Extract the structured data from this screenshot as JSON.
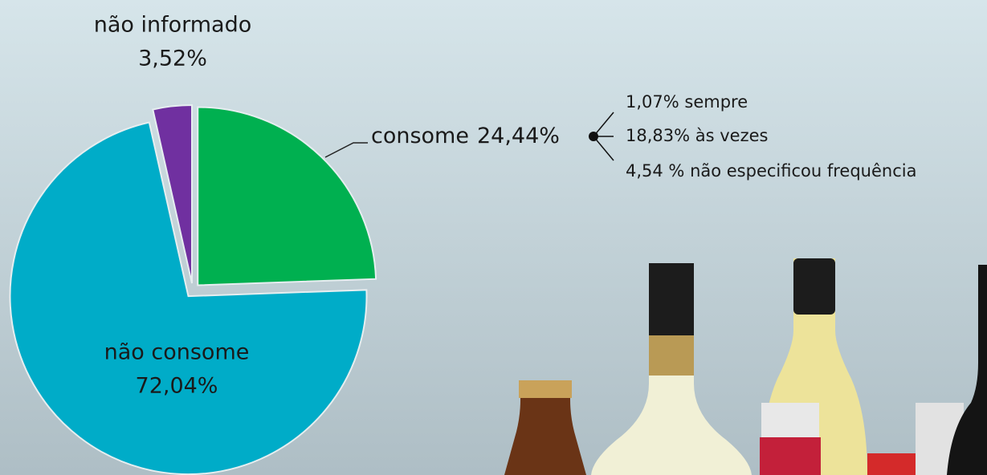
{
  "chart_data": {
    "type": "pie",
    "categories": [
      "consome",
      "não consome",
      "não informado"
    ],
    "values": [
      24.44,
      72.04,
      3.52
    ],
    "value_labels": [
      "24,44%",
      "72,04%",
      "3,52%"
    ],
    "colors": [
      "#00b050",
      "#00acc8",
      "#7030a0"
    ],
    "annotations": [
      "1,07% sempre",
      "18,83% às vezes",
      "4,54 % não especificou frequência"
    ]
  }
}
